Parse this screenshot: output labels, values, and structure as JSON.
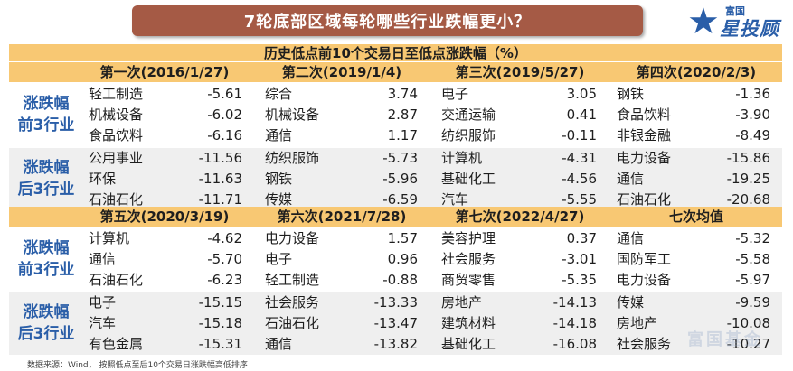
{
  "title": "7轮底部区域每轮哪些行业跌幅更小？",
  "logo": {
    "small": "富国",
    "big": "星投顾",
    "star": "★"
  },
  "table_header": "历史低点前10个交易日至低点涨跌幅（%）",
  "row_labels": {
    "top": [
      "涨跌幅",
      "前3行业"
    ],
    "bottom": [
      "涨跌幅",
      "后3行业"
    ]
  },
  "sections": [
    {
      "rounds": [
        "第一次(2016/1/27)",
        "第二次(2019/1/4)",
        "第三次(2019/5/27)",
        "第四次(2020/2/3)"
      ],
      "top": [
        [
          [
            "轻工制造",
            "-5.61"
          ],
          [
            "综合",
            "3.74"
          ],
          [
            "电子",
            "3.05"
          ],
          [
            "钢铁",
            "-1.36"
          ]
        ],
        [
          [
            "机械设备",
            "-6.02"
          ],
          [
            "机械设备",
            "2.87"
          ],
          [
            "交通运输",
            "0.41"
          ],
          [
            "食品饮料",
            "-3.90"
          ]
        ],
        [
          [
            "食品饮料",
            "-6.16"
          ],
          [
            "通信",
            "1.17"
          ],
          [
            "纺织服饰",
            "-0.11"
          ],
          [
            "非银金融",
            "-8.49"
          ]
        ]
      ],
      "bottom": [
        [
          [
            "公用事业",
            "-11.56"
          ],
          [
            "纺织服饰",
            "-5.73"
          ],
          [
            "计算机",
            "-4.31"
          ],
          [
            "电力设备",
            "-15.86"
          ]
        ],
        [
          [
            "环保",
            "-11.63"
          ],
          [
            "钢铁",
            "-5.96"
          ],
          [
            "基础化工",
            "-4.56"
          ],
          [
            "通信",
            "-19.25"
          ]
        ],
        [
          [
            "石油石化",
            "-11.71"
          ],
          [
            "传媒",
            "-6.59"
          ],
          [
            "汽车",
            "-5.55"
          ],
          [
            "石油石化",
            "-20.68"
          ]
        ]
      ]
    },
    {
      "rounds": [
        "第五次(2020/3/19)",
        "第六次(2021/7/28)",
        "第七次(2022/4/27)",
        "七次均值"
      ],
      "top": [
        [
          [
            "计算机",
            "-4.62"
          ],
          [
            "电力设备",
            "1.57"
          ],
          [
            "美容护理",
            "0.37"
          ],
          [
            "通信",
            "-5.32"
          ]
        ],
        [
          [
            "通信",
            "-5.70"
          ],
          [
            "电子",
            "0.96"
          ],
          [
            "社会服务",
            "-3.01"
          ],
          [
            "国防军工",
            "-5.58"
          ]
        ],
        [
          [
            "石油石化",
            "-6.23"
          ],
          [
            "轻工制造",
            "-0.88"
          ],
          [
            "商贸零售",
            "-5.35"
          ],
          [
            "电力设备",
            "-5.97"
          ]
        ]
      ],
      "bottom": [
        [
          [
            "电子",
            "-15.15"
          ],
          [
            "社会服务",
            "-13.33"
          ],
          [
            "房地产",
            "-14.13"
          ],
          [
            "传媒",
            "-9.59"
          ]
        ],
        [
          [
            "汽车",
            "-15.18"
          ],
          [
            "石油石化",
            "-13.47"
          ],
          [
            "建筑材料",
            "-14.18"
          ],
          [
            "房地产",
            "-10.08"
          ]
        ],
        [
          [
            "有色金属",
            "-15.31"
          ],
          [
            "通信",
            "-13.82"
          ],
          [
            "基础化工",
            "-16.08"
          ],
          [
            "社会服务",
            "-10.27"
          ]
        ]
      ]
    }
  ],
  "footnote": "数据来源：Wind， 按照低点至后10个交易日涨跌幅高低排序",
  "watermark": "富国基金"
}
